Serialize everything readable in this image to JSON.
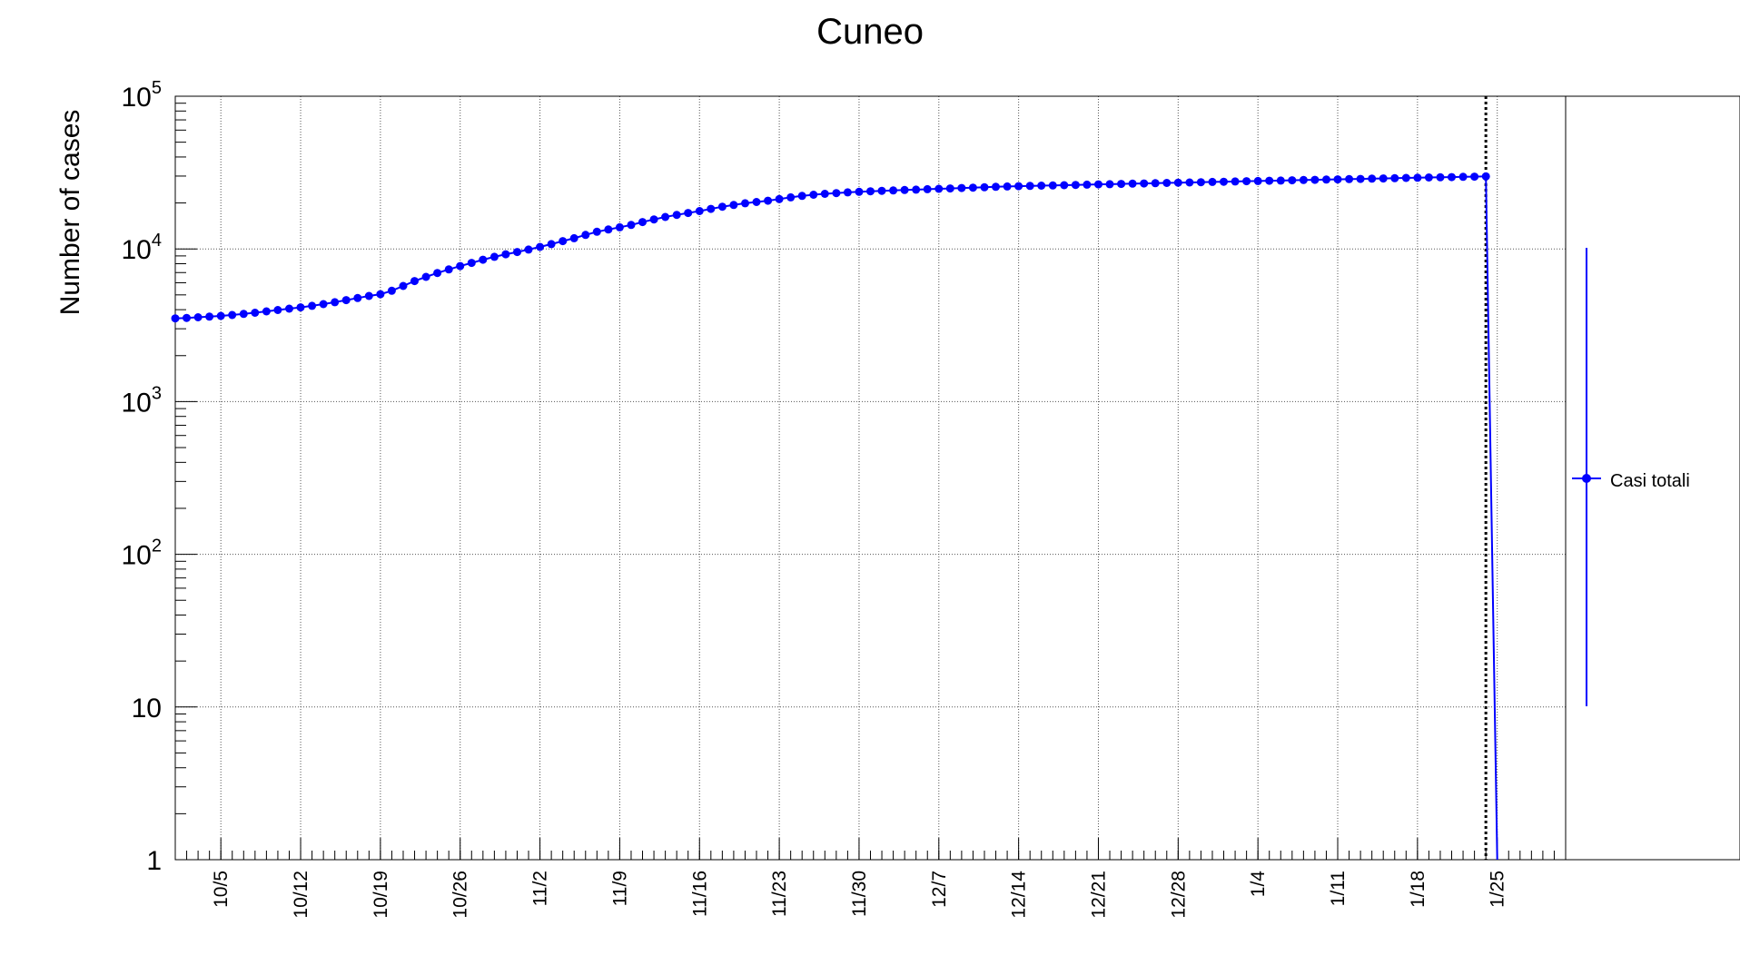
{
  "chart_data": {
    "type": "line",
    "title": "Cuneo",
    "xlabel": "",
    "ylabel": "Number of cases",
    "yscale": "log",
    "ylim": [
      1,
      100000
    ],
    "xlim": [
      "2020-10-01",
      "2021-01-31"
    ],
    "grid": true,
    "legend_position": "right",
    "x_tick_labels": [
      "10/5",
      "10/12",
      "10/19",
      "10/26",
      "11/2",
      "11/9",
      "11/16",
      "11/23",
      "11/30",
      "12/7",
      "12/14",
      "12/21",
      "12/28",
      "1/4",
      "1/11",
      "1/18",
      "1/25"
    ],
    "x_tick_dates": [
      "2020-10-05",
      "2020-10-12",
      "2020-10-19",
      "2020-10-26",
      "2020-11-02",
      "2020-11-09",
      "2020-11-16",
      "2020-11-23",
      "2020-11-30",
      "2020-12-07",
      "2020-12-14",
      "2020-12-21",
      "2020-12-28",
      "2021-01-04",
      "2021-01-11",
      "2021-01-18",
      "2021-01-25"
    ],
    "y_tick_labels": [
      {
        "value": 1,
        "base": "1",
        "exp": ""
      },
      {
        "value": 10,
        "base": "10",
        "exp": ""
      },
      {
        "value": 100,
        "base": "10",
        "exp": "2"
      },
      {
        "value": 1000,
        "base": "10",
        "exp": "3"
      },
      {
        "value": 10000,
        "base": "10",
        "exp": "4"
      },
      {
        "value": 100000,
        "base": "10",
        "exp": "5"
      }
    ],
    "vertical_marker": "2021-01-24",
    "series": [
      {
        "name": "Casi totali",
        "color": "#0000ff",
        "x": [
          "2020-10-01",
          "2020-10-02",
          "2020-10-03",
          "2020-10-04",
          "2020-10-05",
          "2020-10-06",
          "2020-10-07",
          "2020-10-08",
          "2020-10-09",
          "2020-10-10",
          "2020-10-11",
          "2020-10-12",
          "2020-10-13",
          "2020-10-14",
          "2020-10-15",
          "2020-10-16",
          "2020-10-17",
          "2020-10-18",
          "2020-10-19",
          "2020-10-20",
          "2020-10-21",
          "2020-10-22",
          "2020-10-23",
          "2020-10-24",
          "2020-10-25",
          "2020-10-26",
          "2020-10-27",
          "2020-10-28",
          "2020-10-29",
          "2020-10-30",
          "2020-10-31",
          "2020-11-01",
          "2020-11-02",
          "2020-11-03",
          "2020-11-04",
          "2020-11-05",
          "2020-11-06",
          "2020-11-07",
          "2020-11-08",
          "2020-11-09",
          "2020-11-10",
          "2020-11-11",
          "2020-11-12",
          "2020-11-13",
          "2020-11-14",
          "2020-11-15",
          "2020-11-16",
          "2020-11-17",
          "2020-11-18",
          "2020-11-19",
          "2020-11-20",
          "2020-11-21",
          "2020-11-22",
          "2020-11-23",
          "2020-11-24",
          "2020-11-25",
          "2020-11-26",
          "2020-11-27",
          "2020-11-28",
          "2020-11-29",
          "2020-11-30",
          "2020-12-01",
          "2020-12-02",
          "2020-12-03",
          "2020-12-04",
          "2020-12-05",
          "2020-12-06",
          "2020-12-07",
          "2020-12-08",
          "2020-12-09",
          "2020-12-10",
          "2020-12-11",
          "2020-12-12",
          "2020-12-13",
          "2020-12-14",
          "2020-12-15",
          "2020-12-16",
          "2020-12-17",
          "2020-12-18",
          "2020-12-19",
          "2020-12-20",
          "2020-12-21",
          "2020-12-22",
          "2020-12-23",
          "2020-12-24",
          "2020-12-25",
          "2020-12-26",
          "2020-12-27",
          "2020-12-28",
          "2020-12-29",
          "2020-12-30",
          "2020-12-31",
          "2021-01-01",
          "2021-01-02",
          "2021-01-03",
          "2021-01-04",
          "2021-01-05",
          "2021-01-06",
          "2021-01-07",
          "2021-01-08",
          "2021-01-09",
          "2021-01-10",
          "2021-01-11",
          "2021-01-12",
          "2021-01-13",
          "2021-01-14",
          "2021-01-15",
          "2021-01-16",
          "2021-01-17",
          "2021-01-18",
          "2021-01-19",
          "2021-01-20",
          "2021-01-21",
          "2021-01-22",
          "2021-01-23",
          "2021-01-24",
          "2021-01-25"
        ],
        "values": [
          3510,
          3535,
          3565,
          3600,
          3640,
          3690,
          3750,
          3820,
          3900,
          3980,
          4060,
          4140,
          4240,
          4350,
          4480,
          4620,
          4770,
          4920,
          5050,
          5320,
          5720,
          6160,
          6560,
          6960,
          7340,
          7720,
          8100,
          8500,
          8880,
          9220,
          9550,
          9900,
          10300,
          10750,
          11250,
          11750,
          12350,
          12950,
          13400,
          13850,
          14350,
          15000,
          15600,
          16200,
          16700,
          17200,
          17700,
          18300,
          18900,
          19400,
          19900,
          20300,
          20700,
          21200,
          21750,
          22250,
          22650,
          22950,
          23200,
          23450,
          23650,
          23850,
          24000,
          24150,
          24300,
          24450,
          24600,
          24750,
          24900,
          25050,
          25200,
          25350,
          25500,
          25650,
          25750,
          25850,
          25950,
          26050,
          26150,
          26250,
          26350,
          26450,
          26550,
          26650,
          26750,
          26850,
          26950,
          27050,
          27150,
          27250,
          27350,
          27450,
          27550,
          27650,
          27750,
          27850,
          27950,
          28050,
          28150,
          28250,
          28350,
          28450,
          28550,
          28650,
          28750,
          28850,
          28950,
          29050,
          29150,
          29250,
          29350,
          29450,
          29550,
          29650,
          29750,
          29850,
          1
        ]
      }
    ]
  }
}
